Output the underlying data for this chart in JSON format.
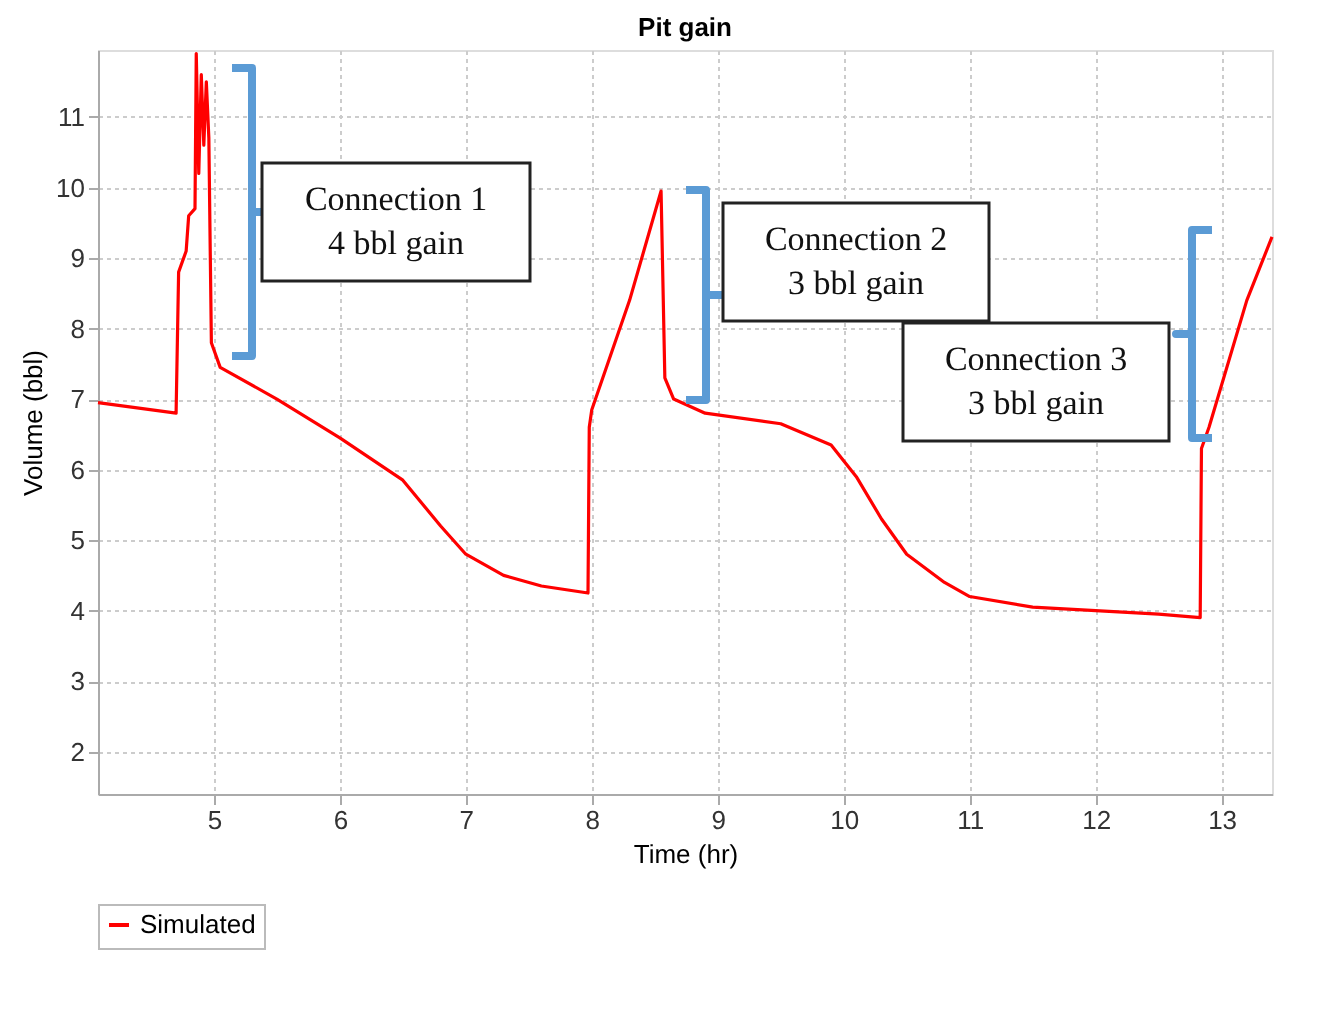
{
  "chart_data": {
    "type": "line",
    "title": "Pit gain",
    "xlabel": "Time (hr)",
    "ylabel": "Volume (bbl)",
    "xlim": [
      4.08,
      13.4
    ],
    "xticks": [
      {
        "value": 5,
        "label": "5"
      },
      {
        "value": 6,
        "label": "6"
      },
      {
        "value": 7,
        "label": "7"
      },
      {
        "value": 8,
        "label": "8"
      },
      {
        "value": 9,
        "label": "9"
      },
      {
        "value": 10,
        "label": "10"
      },
      {
        "value": 11,
        "label": "11"
      },
      {
        "value": 12,
        "label": "12"
      },
      {
        "value": 13,
        "label": "13"
      }
    ],
    "ylim": [
      1.4,
      11.95
    ],
    "yticks": [
      2,
      3,
      4,
      5,
      6,
      7,
      8,
      9,
      10,
      11
    ],
    "grid": true,
    "legend": "bottom",
    "marker": "none",
    "line_style": "solid",
    "series": [
      {
        "name": "Simulated",
        "color": "#ff0000",
        "x": [
          4.08,
          4.7,
          4.72,
          4.78,
          4.8,
          4.85,
          4.86,
          4.88,
          4.9,
          4.92,
          4.94,
          4.96,
          4.98,
          5.05,
          5.5,
          6.0,
          6.5,
          6.8,
          7.0,
          7.3,
          7.6,
          7.97,
          7.98,
          8.0,
          8.3,
          8.55,
          8.58,
          8.65,
          8.9,
          9.5,
          9.9,
          10.1,
          10.3,
          10.5,
          10.8,
          11.0,
          11.5,
          12.0,
          12.5,
          12.83,
          12.84,
          12.9,
          13.2,
          13.4
        ],
        "values": [
          6.95,
          6.8,
          8.8,
          9.1,
          9.6,
          9.7,
          11.9,
          10.2,
          11.6,
          10.6,
          11.5,
          10.7,
          7.8,
          7.45,
          7.0,
          6.45,
          5.85,
          5.2,
          4.8,
          4.5,
          4.35,
          4.25,
          6.6,
          6.85,
          8.4,
          9.95,
          7.3,
          7.0,
          6.8,
          6.65,
          6.35,
          5.9,
          5.3,
          4.8,
          4.4,
          4.2,
          4.05,
          4.0,
          3.95,
          3.9,
          6.3,
          6.6,
          8.4,
          9.3
        ]
      }
    ],
    "annotations": [
      "Connection 1\n4 bbl gain",
      "Connection 2\n3 bbl gain",
      "Connection 3\n3 bbl gain"
    ]
  }
}
